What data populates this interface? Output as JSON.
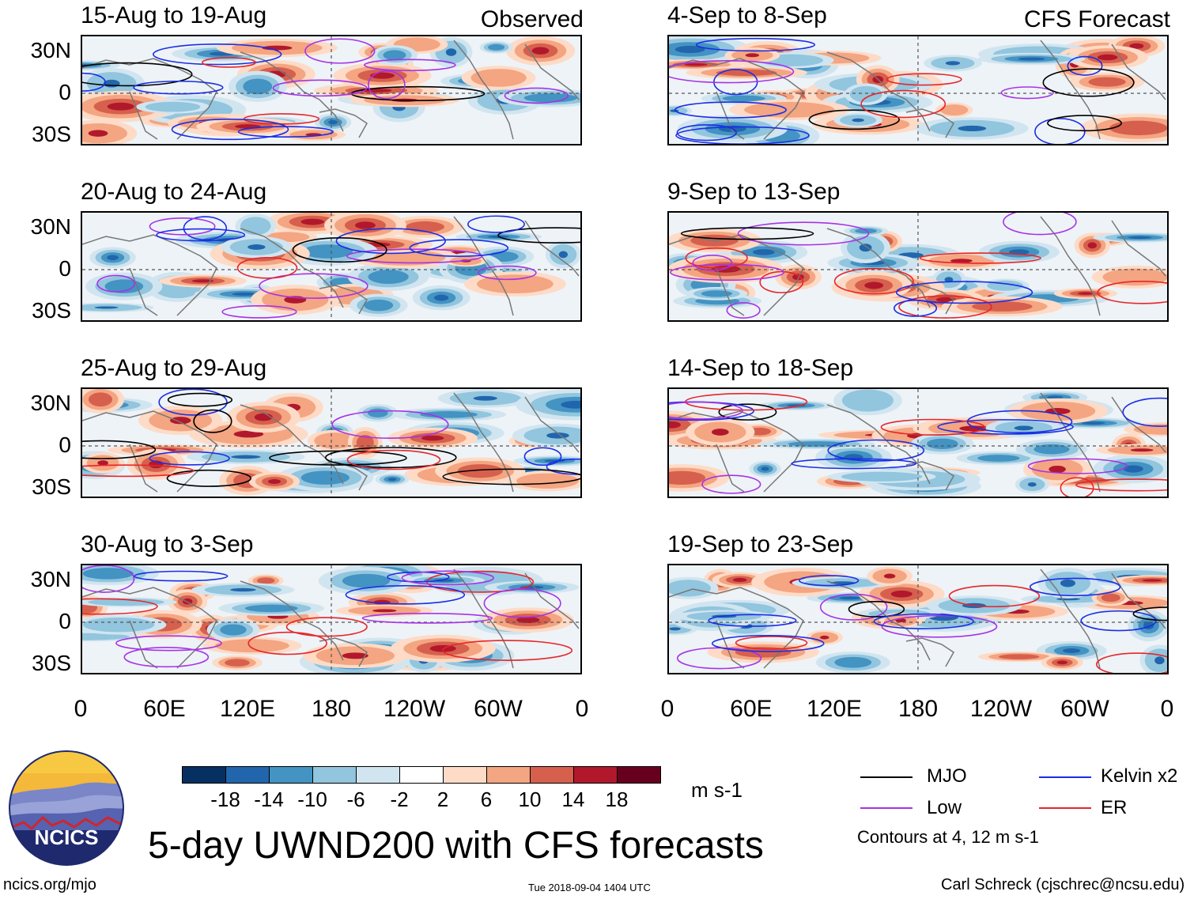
{
  "colors": {
    "mjo": "#000000",
    "kelvin": "#1a2ee6",
    "low": "#a633e6",
    "er": "#e6262a"
  },
  "panels_left_header": "Observed",
  "panels_right_header": "CFS Forecast",
  "left_panels": [
    {
      "period": "15-Aug to 19-Aug"
    },
    {
      "period": "20-Aug to 24-Aug"
    },
    {
      "period": "25-Aug to 29-Aug"
    },
    {
      "period": "30-Aug to 3-Sep"
    }
  ],
  "right_panels": [
    {
      "period": "4-Sep to 8-Sep"
    },
    {
      "period": "9-Sep to 13-Sep"
    },
    {
      "period": "14-Sep to 18-Sep"
    },
    {
      "period": "19-Sep to 23-Sep"
    }
  ],
  "lat_labels": [
    "30N",
    "0",
    "30S"
  ],
  "lon_labels": [
    "0",
    "60E",
    "120E",
    "180",
    "120W",
    "60W",
    "0"
  ],
  "colorbar": {
    "colors": [
      "#053061",
      "#2166ac",
      "#4393c3",
      "#92c5de",
      "#d1e5f0",
      "#ffffff",
      "#fddbc7",
      "#f4a582",
      "#d6604d",
      "#b2182b",
      "#67001f"
    ],
    "labels": [
      "-18",
      "-14",
      "-10",
      "-6",
      "-2",
      "2",
      "6",
      "10",
      "14",
      "18"
    ],
    "units": "m s-1"
  },
  "legend": {
    "mjo": "MJO",
    "kelvin": "Kelvin x2",
    "low": "Low",
    "er": "ER",
    "note": "Contours at 4, 12 m s-1"
  },
  "title": "5-day UWND200 with CFS forecasts",
  "footer": {
    "url": "ncics.org/mjo",
    "timestamp": "Tue 2018-09-04 1404 UTC",
    "author": "Carl Schreck (cjschrec@ncsu.edu)"
  },
  "logo_text": "NCICS"
}
